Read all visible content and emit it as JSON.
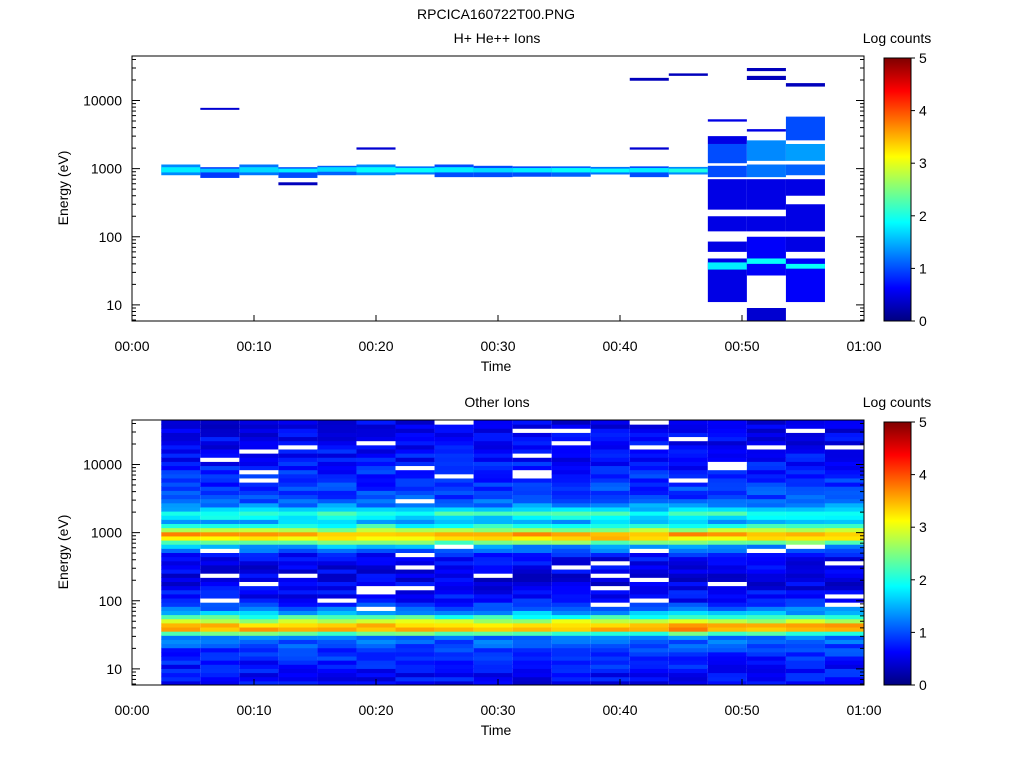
{
  "figure_title": "RPCICA160722T00.PNG",
  "colorbar": {
    "label": "Log counts",
    "ticks": [
      "0",
      "1",
      "2",
      "3",
      "4",
      "5"
    ],
    "range": [
      0,
      5
    ],
    "colormap": [
      "#00007f",
      "#0000ff",
      "#007fff",
      "#00ffff",
      "#7fff7f",
      "#ffff00",
      "#ff7f00",
      "#ff0000",
      "#7f0000"
    ]
  },
  "chart_data": [
    {
      "type": "heatmap",
      "title": "H+ He++ Ions",
      "xlabel": "Time",
      "ylabel": "Energy (eV)",
      "x_ticks": [
        "00:00",
        "00:10",
        "00:20",
        "00:30",
        "00:40",
        "00:50",
        "01:00"
      ],
      "y_ticks": [
        "10",
        "100",
        "1000",
        "10000"
      ],
      "yscale": "log",
      "xlim_minutes": [
        0,
        60
      ],
      "ylim_eV": [
        5.8,
        45000
      ],
      "time_bins_minutes": [
        2.4,
        5.6,
        8.8,
        12.0,
        15.2,
        18.4,
        21.6,
        24.8,
        28.0,
        31.2,
        34.4,
        37.6,
        40.8,
        44.0,
        47.2,
        50.4,
        53.6,
        56.8,
        60.0
      ],
      "columns": [
        [
          [
            800,
            1150,
            1.3
          ],
          [
            880,
            1050,
            1.8
          ]
        ],
        [
          [
            730,
            1050,
            0.9
          ],
          [
            880,
            1000,
            1.6
          ],
          [
            7300,
            7800,
            0.4
          ]
        ],
        [
          [
            800,
            1150,
            1.2
          ],
          [
            880,
            1050,
            1.7
          ]
        ],
        [
          [
            730,
            1050,
            1.0
          ],
          [
            880,
            1000,
            1.8
          ],
          [
            570,
            630,
            0.3
          ]
        ],
        [
          [
            800,
            1100,
            1.1
          ],
          [
            900,
            1050,
            1.7
          ]
        ],
        [
          [
            800,
            1150,
            1.3
          ],
          [
            880,
            1050,
            1.9
          ],
          [
            1900,
            2050,
            0.4
          ]
        ],
        [
          [
            820,
            1080,
            1.2
          ],
          [
            880,
            1020,
            1.9
          ]
        ],
        [
          [
            750,
            1150,
            1.0
          ],
          [
            880,
            1050,
            1.8
          ]
        ],
        [
          [
            750,
            1100,
            1.0
          ],
          [
            880,
            1020,
            1.7
          ]
        ],
        [
          [
            760,
            1080,
            1.0
          ],
          [
            880,
            1020,
            1.8
          ]
        ],
        [
          [
            760,
            1080,
            1.1
          ],
          [
            880,
            1020,
            1.9
          ]
        ],
        [
          [
            820,
            1060,
            1.2
          ],
          [
            880,
            1000,
            1.9
          ]
        ],
        [
          [
            750,
            1080,
            1.0
          ],
          [
            880,
            1020,
            1.8
          ],
          [
            1900,
            2050,
            0.4
          ],
          [
            19500,
            21500,
            0.3
          ]
        ],
        [
          [
            820,
            1060,
            1.3
          ],
          [
            880,
            1000,
            2.0
          ],
          [
            23000,
            25000,
            0.3
          ]
        ],
        [
          [
            11,
            48,
            0.5
          ],
          [
            33,
            42,
            1.8
          ],
          [
            60,
            85,
            0.5
          ],
          [
            120,
            200,
            0.5
          ],
          [
            250,
            700,
            0.5
          ],
          [
            750,
            1100,
            1.0
          ],
          [
            1200,
            2300,
            1.0
          ],
          [
            2300,
            3000,
            0.5
          ],
          [
            4900,
            5300,
            0.5
          ]
        ],
        [
          [
            5.8,
            9,
            0.4
          ],
          [
            27,
            100,
            0.6
          ],
          [
            40,
            48,
            1.9
          ],
          [
            120,
            200,
            0.5
          ],
          [
            250,
            700,
            0.5
          ],
          [
            750,
            1150,
            1.2
          ],
          [
            1300,
            2600,
            1.3
          ],
          [
            3500,
            3800,
            0.5
          ],
          [
            20000,
            23000,
            0.3
          ],
          [
            27000,
            30000,
            0.3
          ]
        ],
        [
          [
            11,
            48,
            0.6
          ],
          [
            34,
            40,
            1.9
          ],
          [
            60,
            100,
            0.5
          ],
          [
            120,
            300,
            0.5
          ],
          [
            400,
            700,
            0.5
          ],
          [
            800,
            1150,
            1.1
          ],
          [
            1300,
            2300,
            1.4
          ],
          [
            2600,
            5800,
            1.0
          ],
          [
            16000,
            18000,
            0.3
          ]
        ]
      ]
    },
    {
      "type": "heatmap",
      "title": "Other Ions",
      "xlabel": "Time",
      "ylabel": "Energy (eV)",
      "x_ticks": [
        "00:00",
        "00:10",
        "00:20",
        "00:30",
        "00:40",
        "00:50",
        "01:00"
      ],
      "y_ticks": [
        "10",
        "100",
        "1000",
        "10000"
      ],
      "yscale": "log",
      "xlim_minutes": [
        0,
        60
      ],
      "ylim_eV": [
        5.8,
        45000
      ],
      "time_bins_minutes": [
        2.4,
        5.6,
        8.8,
        12.0,
        15.2,
        18.4,
        21.6,
        24.8,
        28.0,
        31.2,
        34.4,
        37.6,
        40.8,
        44.0,
        47.2,
        50.4,
        53.6,
        56.8,
        60.0
      ],
      "energy_profile_log_counts": [
        [
          6,
          0.6
        ],
        [
          10,
          0.7
        ],
        [
          20,
          0.9
        ],
        [
          30,
          1.2
        ],
        [
          38,
          3.6
        ],
        [
          45,
          3.4
        ],
        [
          55,
          2.4
        ],
        [
          70,
          1.3
        ],
        [
          100,
          0.7
        ],
        [
          200,
          0.5
        ],
        [
          450,
          0.6
        ],
        [
          650,
          1.5
        ],
        [
          800,
          3.2
        ],
        [
          950,
          3.6
        ],
        [
          1150,
          2.4
        ],
        [
          1500,
          1.4
        ],
        [
          1900,
          2.2
        ],
        [
          2400,
          1.4
        ],
        [
          3000,
          1.0
        ],
        [
          10000,
          0.7
        ],
        [
          45000,
          0.5
        ]
      ]
    }
  ]
}
